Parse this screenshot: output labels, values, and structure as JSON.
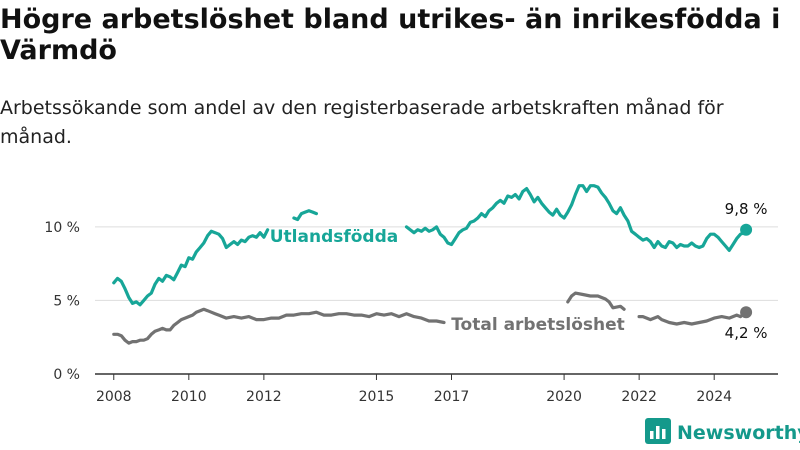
{
  "title": "Högre arbetslöshet bland utrikes- än inrikesfödda i Värmdö",
  "subtitle": "Arbetssökande som andel av den registerbaserade arbetskraften månad för månad.",
  "brand": {
    "name": "Newsworthy",
    "icon": "bar-chart-logo-icon"
  },
  "colors": {
    "foreign_born": "#17a698",
    "total": "#727272",
    "grid": "#dddddd",
    "brand": "#14998b"
  },
  "chart_data": {
    "type": "line",
    "title": "Högre arbetslöshet bland utrikes- än inrikesfödda i Värmdö",
    "subtitle": "Arbetssökande som andel av den registerbaserade arbetskraften månad för månad.",
    "xlim": [
      2007.5,
      2025.7
    ],
    "ylim": [
      0,
      14
    ],
    "x_ticks": [
      {
        "value": 2008,
        "label": "2008"
      },
      {
        "value": 2010,
        "label": "2010"
      },
      {
        "value": 2012,
        "label": "2012"
      },
      {
        "value": 2015,
        "label": "2015"
      },
      {
        "value": 2017,
        "label": "2017"
      },
      {
        "value": 2020,
        "label": "2020"
      },
      {
        "value": 2022,
        "label": "2022"
      },
      {
        "value": 2024,
        "label": "2024"
      }
    ],
    "y_ticks": [
      {
        "value": 0,
        "label": "0 %"
      },
      {
        "value": 5,
        "label": "5 %"
      },
      {
        "value": 10,
        "label": "10 %"
      }
    ],
    "grid": true,
    "series": [
      {
        "name": "Utlandsfödda",
        "end_label": "9,8 %",
        "segments": [
          [
            [
              2008.0,
              6.2
            ],
            [
              2008.1,
              6.5
            ],
            [
              2008.2,
              6.3
            ],
            [
              2008.3,
              5.8
            ],
            [
              2008.4,
              5.2
            ],
            [
              2008.5,
              4.8
            ],
            [
              2008.6,
              4.9
            ],
            [
              2008.7,
              4.7
            ],
            [
              2008.8,
              5.0
            ],
            [
              2008.9,
              5.3
            ],
            [
              2009.0,
              5.5
            ],
            [
              2009.1,
              6.1
            ],
            [
              2009.2,
              6.5
            ],
            [
              2009.3,
              6.3
            ],
            [
              2009.4,
              6.7
            ],
            [
              2009.5,
              6.6
            ],
            [
              2009.6,
              6.4
            ],
            [
              2009.7,
              6.9
            ],
            [
              2009.8,
              7.4
            ],
            [
              2009.9,
              7.3
            ],
            [
              2010.0,
              7.9
            ],
            [
              2010.1,
              7.8
            ],
            [
              2010.2,
              8.3
            ],
            [
              2010.3,
              8.6
            ],
            [
              2010.4,
              8.9
            ],
            [
              2010.5,
              9.4
            ],
            [
              2010.6,
              9.7
            ],
            [
              2010.7,
              9.6
            ],
            [
              2010.8,
              9.5
            ],
            [
              2010.9,
              9.2
            ],
            [
              2011.0,
              8.6
            ],
            [
              2011.1,
              8.8
            ],
            [
              2011.2,
              9.0
            ],
            [
              2011.3,
              8.8
            ],
            [
              2011.4,
              9.1
            ],
            [
              2011.5,
              9.0
            ],
            [
              2011.6,
              9.3
            ],
            [
              2011.7,
              9.4
            ],
            [
              2011.8,
              9.3
            ],
            [
              2011.9,
              9.6
            ],
            [
              2012.0,
              9.3
            ],
            [
              2012.1,
              9.8
            ]
          ],
          [
            [
              2012.8,
              10.6
            ],
            [
              2012.9,
              10.5
            ],
            [
              2013.0,
              10.9
            ],
            [
              2013.1,
              11.0
            ],
            [
              2013.2,
              11.1
            ],
            [
              2013.3,
              11.0
            ],
            [
              2013.4,
              10.9
            ]
          ],
          [
            [
              2015.8,
              10.0
            ],
            [
              2015.9,
              9.8
            ],
            [
              2016.0,
              9.6
            ],
            [
              2016.1,
              9.8
            ],
            [
              2016.2,
              9.7
            ],
            [
              2016.3,
              9.9
            ],
            [
              2016.4,
              9.7
            ],
            [
              2016.5,
              9.8
            ],
            [
              2016.6,
              10.0
            ],
            [
              2016.7,
              9.5
            ],
            [
              2016.8,
              9.3
            ],
            [
              2016.9,
              8.9
            ],
            [
              2017.0,
              8.8
            ],
            [
              2017.1,
              9.2
            ],
            [
              2017.2,
              9.6
            ],
            [
              2017.3,
              9.8
            ],
            [
              2017.4,
              9.9
            ],
            [
              2017.5,
              10.3
            ],
            [
              2017.6,
              10.4
            ],
            [
              2017.7,
              10.6
            ],
            [
              2017.8,
              10.9
            ],
            [
              2017.9,
              10.7
            ],
            [
              2018.0,
              11.1
            ],
            [
              2018.1,
              11.3
            ],
            [
              2018.2,
              11.6
            ],
            [
              2018.3,
              11.8
            ],
            [
              2018.4,
              11.6
            ],
            [
              2018.5,
              12.1
            ],
            [
              2018.6,
              12.0
            ],
            [
              2018.7,
              12.2
            ],
            [
              2018.8,
              11.9
            ],
            [
              2018.9,
              12.4
            ],
            [
              2019.0,
              12.6
            ],
            [
              2019.1,
              12.2
            ],
            [
              2019.2,
              11.7
            ],
            [
              2019.3,
              12.0
            ],
            [
              2019.4,
              11.6
            ],
            [
              2019.5,
              11.3
            ],
            [
              2019.6,
              11.0
            ],
            [
              2019.7,
              10.8
            ],
            [
              2019.8,
              11.2
            ],
            [
              2019.9,
              10.8
            ],
            [
              2020.0,
              10.6
            ],
            [
              2020.1,
              11.0
            ],
            [
              2020.2,
              11.5
            ],
            [
              2020.3,
              12.2
            ],
            [
              2020.4,
              12.8
            ],
            [
              2020.5,
              12.8
            ],
            [
              2020.6,
              12.4
            ],
            [
              2020.7,
              12.8
            ],
            [
              2020.8,
              12.8
            ],
            [
              2020.9,
              12.7
            ],
            [
              2021.0,
              12.3
            ],
            [
              2021.1,
              12.0
            ],
            [
              2021.2,
              11.6
            ],
            [
              2021.3,
              11.1
            ],
            [
              2021.4,
              10.9
            ],
            [
              2021.5,
              11.3
            ],
            [
              2021.6,
              10.8
            ],
            [
              2021.7,
              10.4
            ],
            [
              2021.8,
              9.7
            ],
            [
              2021.9,
              9.5
            ],
            [
              2022.0,
              9.3
            ],
            [
              2022.1,
              9.1
            ],
            [
              2022.2,
              9.2
            ],
            [
              2022.3,
              9.0
            ],
            [
              2022.4,
              8.6
            ],
            [
              2022.5,
              9.0
            ],
            [
              2022.6,
              8.7
            ],
            [
              2022.7,
              8.6
            ],
            [
              2022.8,
              9.0
            ],
            [
              2022.9,
              8.9
            ],
            [
              2023.0,
              8.6
            ],
            [
              2023.1,
              8.8
            ],
            [
              2023.2,
              8.7
            ],
            [
              2023.3,
              8.7
            ],
            [
              2023.4,
              8.9
            ],
            [
              2023.5,
              8.7
            ],
            [
              2023.6,
              8.6
            ],
            [
              2023.7,
              8.7
            ],
            [
              2023.8,
              9.2
            ],
            [
              2023.9,
              9.5
            ],
            [
              2024.0,
              9.5
            ],
            [
              2024.1,
              9.3
            ],
            [
              2024.2,
              9.0
            ],
            [
              2024.3,
              8.7
            ],
            [
              2024.4,
              8.4
            ],
            [
              2024.5,
              8.8
            ],
            [
              2024.6,
              9.2
            ],
            [
              2024.7,
              9.5
            ],
            [
              2024.8,
              9.6
            ],
            [
              2024.85,
              9.8
            ]
          ]
        ]
      },
      {
        "name": "Total arbetslöshet",
        "end_label": "4,2 %",
        "segments": [
          [
            [
              2008.0,
              2.7
            ],
            [
              2008.1,
              2.7
            ],
            [
              2008.2,
              2.6
            ],
            [
              2008.3,
              2.3
            ],
            [
              2008.4,
              2.1
            ],
            [
              2008.5,
              2.2
            ],
            [
              2008.6,
              2.2
            ],
            [
              2008.7,
              2.3
            ],
            [
              2008.8,
              2.3
            ],
            [
              2008.9,
              2.4
            ],
            [
              2009.0,
              2.7
            ],
            [
              2009.1,
              2.9
            ],
            [
              2009.2,
              3.0
            ],
            [
              2009.3,
              3.1
            ],
            [
              2009.4,
              3.0
            ],
            [
              2009.5,
              3.0
            ],
            [
              2009.6,
              3.3
            ],
            [
              2009.7,
              3.5
            ],
            [
              2009.8,
              3.7
            ],
            [
              2009.9,
              3.8
            ],
            [
              2010.0,
              3.9
            ],
            [
              2010.1,
              4.0
            ],
            [
              2010.2,
              4.2
            ],
            [
              2010.3,
              4.3
            ],
            [
              2010.4,
              4.4
            ],
            [
              2010.5,
              4.3
            ],
            [
              2010.6,
              4.2
            ],
            [
              2010.7,
              4.1
            ],
            [
              2010.8,
              4.0
            ],
            [
              2010.9,
              3.9
            ],
            [
              2011.0,
              3.8
            ],
            [
              2011.2,
              3.9
            ],
            [
              2011.4,
              3.8
            ],
            [
              2011.6,
              3.9
            ],
            [
              2011.8,
              3.7
            ],
            [
              2012.0,
              3.7
            ],
            [
              2012.2,
              3.8
            ],
            [
              2012.4,
              3.8
            ],
            [
              2012.6,
              4.0
            ],
            [
              2012.8,
              4.0
            ],
            [
              2013.0,
              4.1
            ],
            [
              2013.2,
              4.1
            ],
            [
              2013.4,
              4.2
            ],
            [
              2013.6,
              4.0
            ],
            [
              2013.8,
              4.0
            ],
            [
              2014.0,
              4.1
            ],
            [
              2014.2,
              4.1
            ],
            [
              2014.4,
              4.0
            ],
            [
              2014.6,
              4.0
            ],
            [
              2014.8,
              3.9
            ],
            [
              2015.0,
              4.1
            ],
            [
              2015.2,
              4.0
            ],
            [
              2015.4,
              4.1
            ],
            [
              2015.6,
              3.9
            ],
            [
              2015.8,
              4.1
            ],
            [
              2016.0,
              3.9
            ],
            [
              2016.2,
              3.8
            ],
            [
              2016.4,
              3.6
            ],
            [
              2016.6,
              3.6
            ],
            [
              2016.8,
              3.5
            ]
          ],
          [
            [
              2020.1,
              4.9
            ],
            [
              2020.2,
              5.3
            ],
            [
              2020.3,
              5.5
            ],
            [
              2020.5,
              5.4
            ],
            [
              2020.7,
              5.3
            ],
            [
              2020.9,
              5.3
            ],
            [
              2021.1,
              5.1
            ],
            [
              2021.2,
              4.9
            ],
            [
              2021.3,
              4.5
            ],
            [
              2021.5,
              4.6
            ],
            [
              2021.6,
              4.4
            ]
          ],
          [
            [
              2022.0,
              3.9
            ],
            [
              2022.1,
              3.9
            ],
            [
              2022.2,
              3.8
            ],
            [
              2022.3,
              3.7
            ],
            [
              2022.5,
              3.9
            ],
            [
              2022.6,
              3.7
            ],
            [
              2022.8,
              3.5
            ],
            [
              2023.0,
              3.4
            ],
            [
              2023.2,
              3.5
            ],
            [
              2023.4,
              3.4
            ],
            [
              2023.6,
              3.5
            ],
            [
              2023.8,
              3.6
            ],
            [
              2024.0,
              3.8
            ],
            [
              2024.2,
              3.9
            ],
            [
              2024.4,
              3.8
            ],
            [
              2024.6,
              4.0
            ],
            [
              2024.7,
              3.9
            ],
            [
              2024.85,
              4.2
            ]
          ]
        ]
      }
    ]
  }
}
